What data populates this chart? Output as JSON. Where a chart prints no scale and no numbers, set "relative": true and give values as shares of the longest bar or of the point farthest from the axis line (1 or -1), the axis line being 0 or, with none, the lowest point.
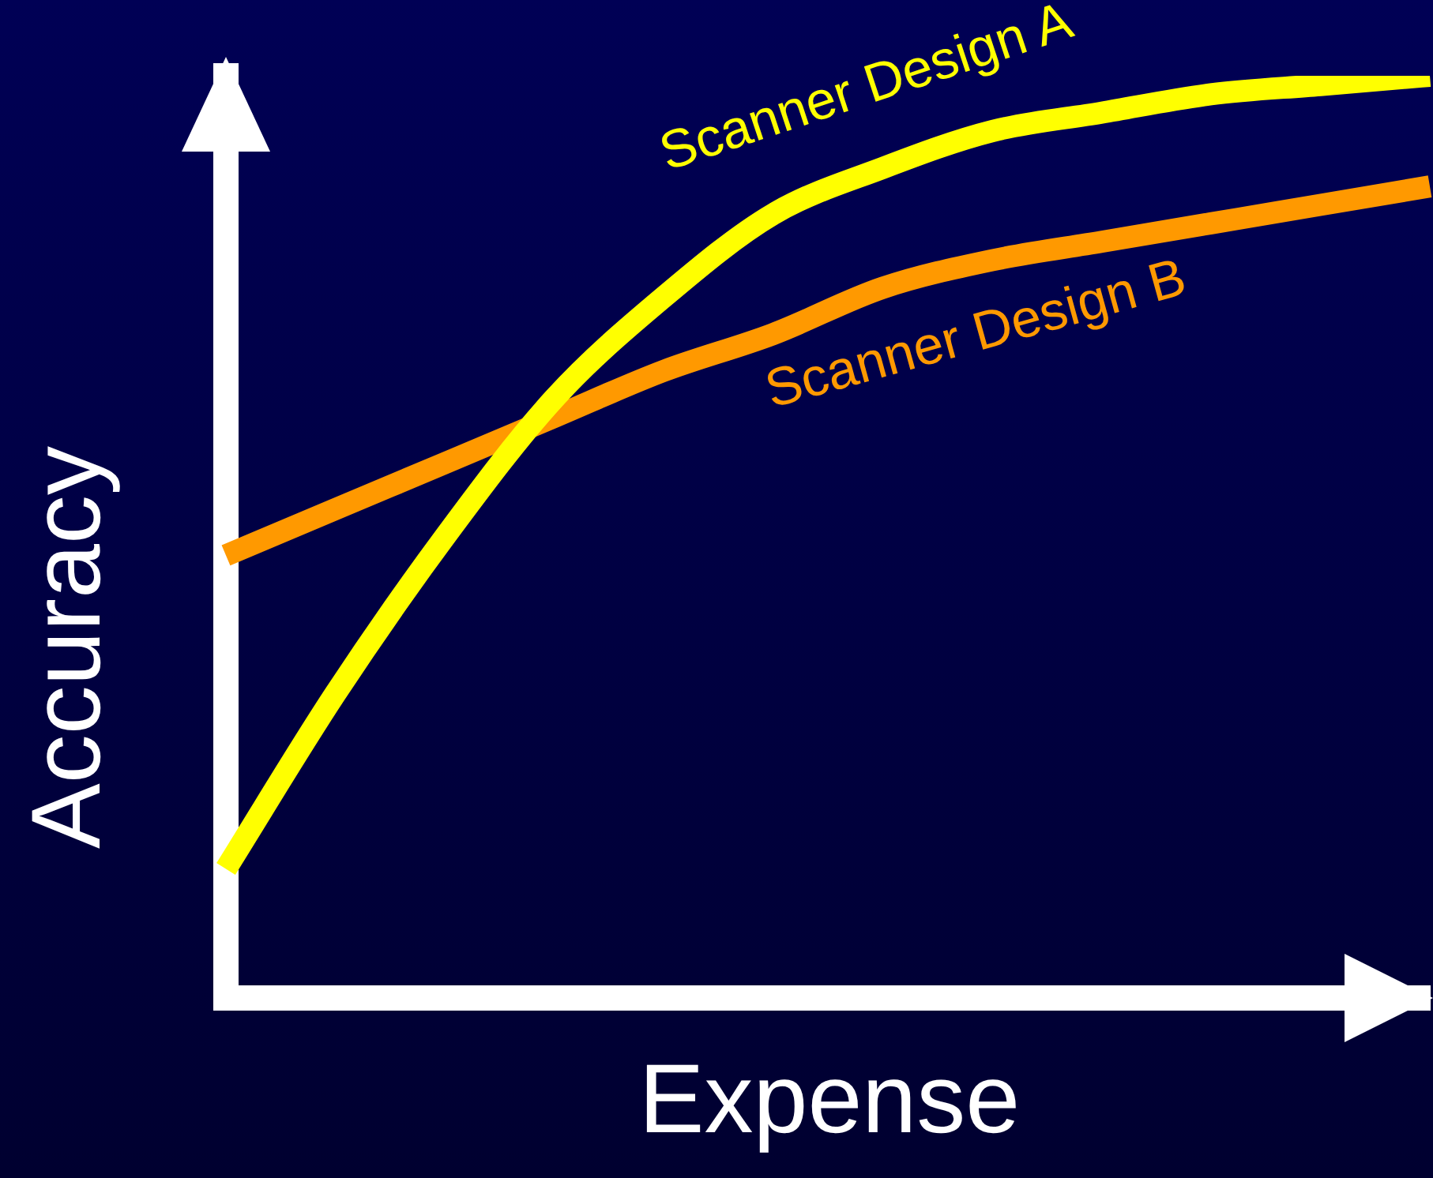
{
  "chart_data": {
    "type": "line",
    "relative": true,
    "xlabel": "Expense",
    "ylabel": "Accuracy",
    "tick_labels": false,
    "marker": "none",
    "line_style": "solid",
    "categories": [
      null,
      null,
      null,
      null,
      null,
      null,
      null,
      null,
      null,
      null,
      null,
      null
    ],
    "series": [
      {
        "name": "Scanner Design A",
        "color": "#ffff00",
        "values": [
          0.14,
          0.33,
          0.5,
          0.65,
          0.76,
          0.85,
          0.9,
          0.94,
          0.96,
          0.98,
          0.99,
          1
        ]
      },
      {
        "name": "Scanner Design B",
        "color": "#ff9900",
        "values": [
          0.48,
          0.53,
          0.58,
          0.63,
          0.68,
          0.72,
          0.77,
          0.8,
          0.82,
          0.84,
          0.86,
          0.88
        ]
      }
    ]
  }
}
